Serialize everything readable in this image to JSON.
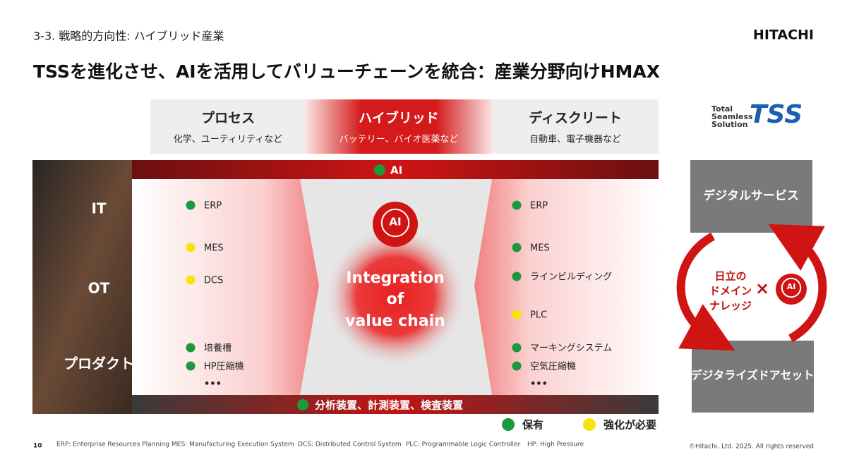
{
  "header": {
    "section": "3-3. 戦略的方向性: ハイブリッド産業",
    "logo": "HITACHI",
    "title": "TSSを進化させ、AIを活用してバリューチェーンを統合：産業分野向けHMAX"
  },
  "columns": [
    {
      "title": "プロセス",
      "subtitle": "化学、ユーティリティなど"
    },
    {
      "title": "ハイブリッド",
      "subtitle": "バッテリー、バイオ医薬など"
    },
    {
      "title": "ディスクリート",
      "subtitle": "自動車、電子機器など"
    }
  ],
  "top_bar": {
    "label": "AI",
    "color": "#1a9a3a"
  },
  "bottom_bar": {
    "label": "分析装置、計測装置、検査装置",
    "color": "#1a9a3a"
  },
  "layers": [
    "IT",
    "OT",
    "プロダクト"
  ],
  "left_items": [
    {
      "label": "ERP",
      "color": "#1a9a3a"
    },
    {
      "label": "MES",
      "color": "#f5e50a"
    },
    {
      "label": "DCS",
      "color": "#f5e50a"
    },
    {
      "label": "培養槽",
      "color": "#1a9a3a"
    },
    {
      "label": "HP圧縮機",
      "color": "#1a9a3a"
    },
    {
      "label": "•••"
    }
  ],
  "right_items": [
    {
      "label": "ERP",
      "color": "#1a9a3a"
    },
    {
      "label": "MES",
      "color": "#1a9a3a"
    },
    {
      "label": "ラインビルディング",
      "color": "#1a9a3a"
    },
    {
      "label": "PLC",
      "color": "#f5e50a"
    },
    {
      "label": "マーキングシステム",
      "color": "#1a9a3a"
    },
    {
      "label": "空気圧縮機",
      "color": "#1a9a3a"
    },
    {
      "label": "•••"
    }
  ],
  "center": {
    "icon_label": "AI",
    "lines": [
      "Integration",
      "of",
      "value chain"
    ]
  },
  "tss": {
    "lines": [
      "Total",
      "Seamless",
      "Solution"
    ],
    "mark": "TSS"
  },
  "cycle": {
    "top": "デジタルサービス",
    "bottom": "デジタライズドアセット",
    "knowledge": [
      "日立の",
      "ドメイン",
      "ナレッジ"
    ],
    "times": "×"
  },
  "legend": [
    {
      "label": "保有",
      "color": "#1a9a3a"
    },
    {
      "label": "強化が必要",
      "color": "#f5e50a"
    }
  ],
  "footer": {
    "page": "10",
    "notes": [
      "ERP: Enterprise Resources Planning",
      "MES: Manufacturing Execution System",
      "DCS: Distributed Control System",
      "PLC: Programmable Logic Controller",
      "HP: High Pressure"
    ],
    "copyright": "©Hitachi, Ltd. 2025. All rights reserved"
  }
}
